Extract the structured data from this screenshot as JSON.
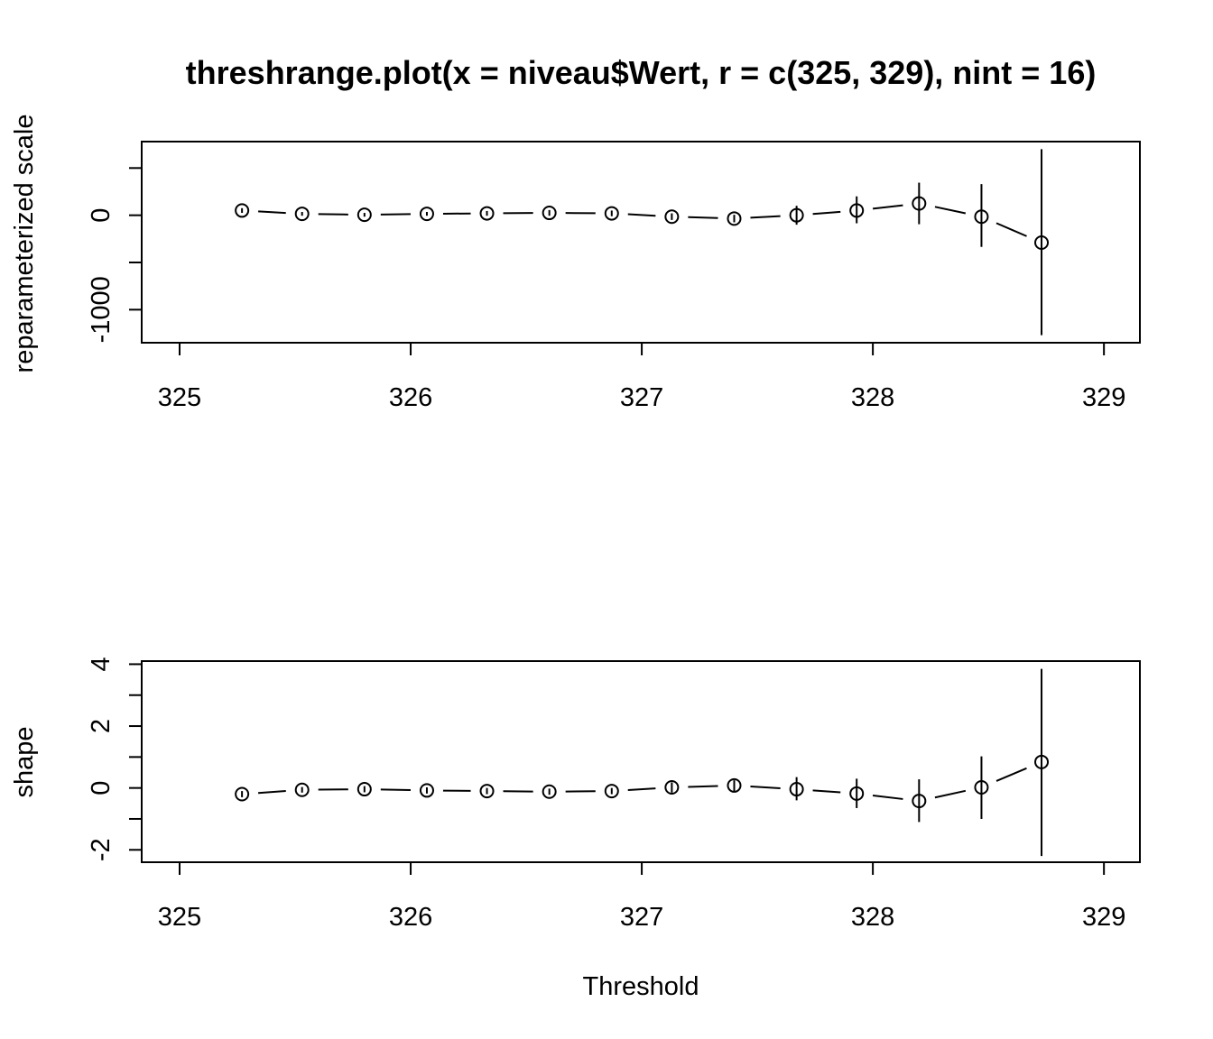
{
  "chart_data": {
    "title": "threshrange.plot(x = niveau$Wert, r = c(325, 329), nint = 16)",
    "xlabel": "Threshold",
    "panels": [
      {
        "type": "scatter",
        "ylabel": "reparameterized scale",
        "xlim": [
          325,
          329
        ],
        "ylim": [
          -1350,
          780
        ],
        "xticks": [
          325,
          326,
          327,
          328,
          329
        ],
        "xtick_labels": [
          "325",
          "326",
          "327",
          "328",
          "329"
        ],
        "yticks": [
          -1000,
          -500,
          0,
          500
        ],
        "ytick_labels": [
          "-1000",
          "",
          "0",
          ""
        ],
        "x": [
          325.27,
          325.53,
          325.8,
          326.07,
          326.33,
          326.6,
          326.87,
          327.13,
          327.4,
          327.67,
          327.93,
          328.2,
          328.47,
          328.73
        ],
        "y": [
          50,
          15,
          5,
          15,
          20,
          25,
          20,
          -15,
          -35,
          0,
          50,
          125,
          -15,
          -290
        ],
        "lower": [
          25,
          -5,
          -15,
          -5,
          -5,
          -5,
          -10,
          -50,
          -75,
          -100,
          -85,
          -95,
          -335,
          -1270
        ],
        "upper": [
          75,
          35,
          25,
          35,
          45,
          55,
          50,
          20,
          5,
          100,
          200,
          345,
          330,
          700
        ]
      },
      {
        "type": "scatter",
        "ylabel": "shape",
        "xlim": [
          325,
          329
        ],
        "ylim": [
          -2.4,
          4.1
        ],
        "xticks": [
          325,
          326,
          327,
          328,
          329
        ],
        "xtick_labels": [
          "325",
          "326",
          "327",
          "328",
          "329"
        ],
        "yticks": [
          -2,
          -1,
          0,
          1,
          2,
          3,
          4
        ],
        "ytick_labels": [
          "-2",
          "",
          "0",
          "",
          "2",
          "",
          "4"
        ],
        "x": [
          325.27,
          325.53,
          325.8,
          326.07,
          326.33,
          326.6,
          326.87,
          327.13,
          327.4,
          327.67,
          327.93,
          328.2,
          328.47,
          328.73
        ],
        "y": [
          -0.2,
          -0.06,
          -0.04,
          -0.08,
          -0.1,
          -0.12,
          -0.1,
          0.02,
          0.08,
          -0.04,
          -0.18,
          -0.42,
          0.02,
          0.84
        ],
        "lower": [
          -0.3,
          -0.15,
          -0.14,
          -0.18,
          -0.2,
          -0.22,
          -0.2,
          -0.15,
          -0.1,
          -0.4,
          -0.65,
          -1.1,
          -1.0,
          -2.2
        ],
        "upper": [
          -0.1,
          0.03,
          0.06,
          0.02,
          0.0,
          -0.02,
          0.0,
          0.18,
          0.25,
          0.35,
          0.3,
          0.28,
          1.02,
          3.85
        ]
      }
    ]
  }
}
